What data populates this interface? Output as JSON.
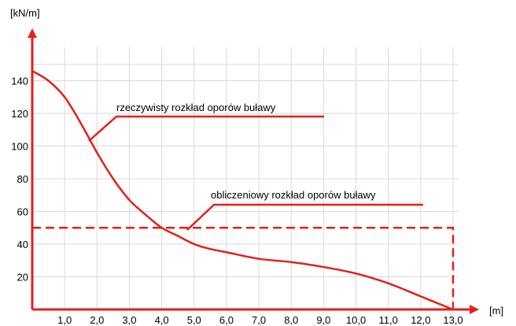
{
  "chart_data": {
    "type": "line",
    "ylabel": "[kN/m]",
    "xlabel": "[m]",
    "xlim": [
      0,
      13.0
    ],
    "ylim": [
      0,
      150
    ],
    "grid": true,
    "x_ticks": [
      1.0,
      2.0,
      3.0,
      4.0,
      5.0,
      6.0,
      7.0,
      8.0,
      9.0,
      10.0,
      11.0,
      12.0,
      13.0
    ],
    "x_tick_labels": [
      "1,0",
      "2,0",
      "3,0",
      "4,0",
      "5,0",
      "6,0",
      "7,0",
      "8,0",
      "9,0",
      "10,0",
      "11,0",
      "12,0",
      "13,0"
    ],
    "y_ticks": [
      20,
      40,
      60,
      80,
      100,
      120,
      140
    ],
    "y_tick_labels": [
      "20",
      "40",
      "60",
      "80",
      "100",
      "120",
      "140"
    ],
    "colors": {
      "series": "#e3201b",
      "grid": "#d9d9d9"
    },
    "series": [
      {
        "name": "rzeczywisty rozkład oporów buławy",
        "style": "solid",
        "x": [
          0,
          0.5,
          1.0,
          1.5,
          2.0,
          2.5,
          3.0,
          3.5,
          4.0,
          4.5,
          5.0,
          5.5,
          6.0,
          7.0,
          8.0,
          9.0,
          10.0,
          11.0,
          12.0,
          13.0
        ],
        "y": [
          146,
          140,
          130,
          114,
          96,
          80,
          67,
          58,
          50,
          45,
          40,
          37,
          35,
          31,
          29,
          26,
          22,
          16,
          8,
          0
        ]
      },
      {
        "name": "obliczeniowy rozkład oporów buławy",
        "style": "dashed",
        "x": [
          0,
          13.0,
          13.0
        ],
        "y": [
          50,
          50,
          0
        ]
      }
    ],
    "annotations": [
      {
        "series": 0,
        "text": "rzeczywisty rozkład oporów buławy"
      },
      {
        "series": 1,
        "text": "obliczeniowy rozkład oporów buławy"
      }
    ]
  }
}
